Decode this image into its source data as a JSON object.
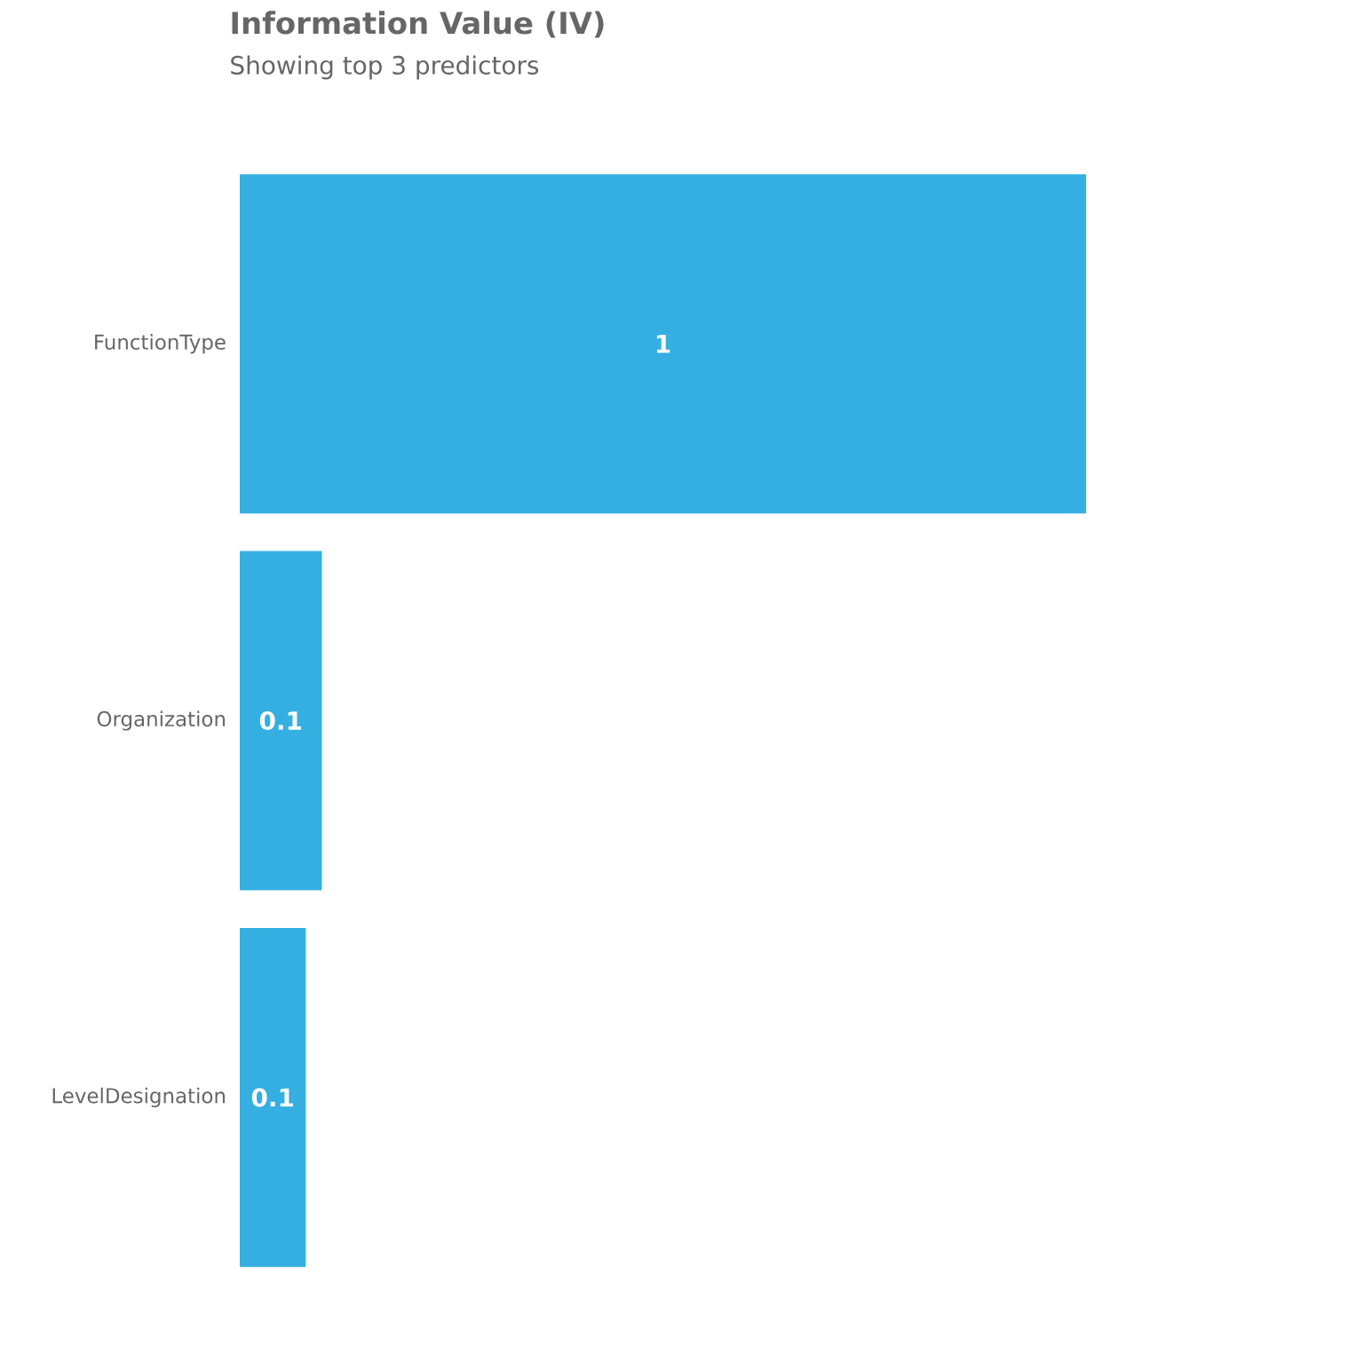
{
  "chart_data": {
    "type": "bar",
    "orientation": "horizontal",
    "title": "Information Value (IV)",
    "subtitle": "Showing top 3 predictors",
    "categories": [
      "FunctionType",
      "Organization",
      "LevelDesignation"
    ],
    "values": [
      1,
      0.097,
      0.078
    ],
    "value_labels": [
      "1",
      "0.1",
      "0.1"
    ],
    "color": "#35afe2"
  }
}
